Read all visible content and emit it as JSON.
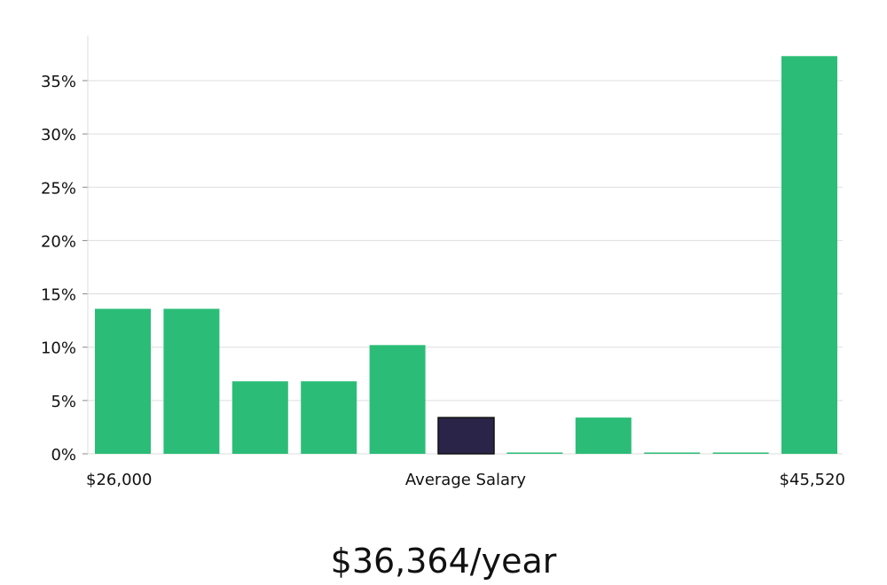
{
  "chart_data": {
    "type": "bar",
    "bins": [
      "1",
      "2",
      "3",
      "4",
      "5",
      "6",
      "7",
      "8",
      "9",
      "10",
      "11"
    ],
    "values": [
      13.6,
      13.6,
      6.8,
      6.8,
      10.2,
      3.4,
      0,
      3.4,
      0,
      0,
      37.3
    ],
    "highlight_index": 5,
    "ylim": [
      0,
      39
    ],
    "yticks": [
      0,
      5,
      10,
      15,
      20,
      25,
      30,
      35
    ],
    "ytick_labels": [
      "0%",
      "5%",
      "10%",
      "15%",
      "20%",
      "25%",
      "30%",
      "35%"
    ],
    "x_labels": {
      "left": "$26,000",
      "center": "Average Salary",
      "right": "$45,520"
    },
    "grid": true,
    "colors": {
      "bar": "#2bbd77",
      "highlight": "#2a2448",
      "grid": "#dddddd",
      "axis": "#dddddd"
    }
  },
  "summary": {
    "average_text": "$36,364/year"
  }
}
